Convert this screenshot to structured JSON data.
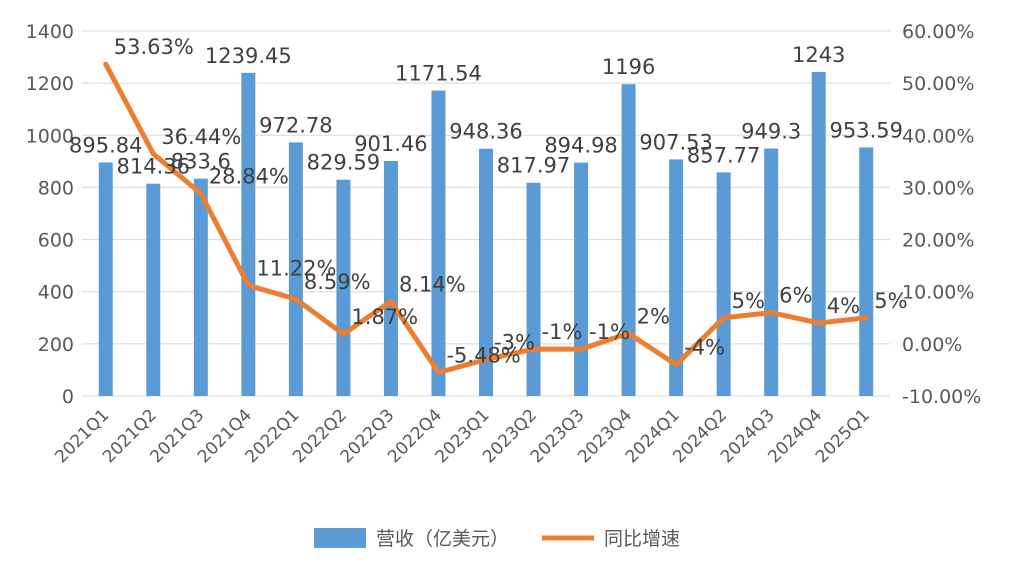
{
  "chart_data": {
    "type": "bar",
    "categories": [
      "2021Q1",
      "2021Q2",
      "2021Q3",
      "2021Q4",
      "2022Q1",
      "2022Q2",
      "2022Q3",
      "2022Q4",
      "2023Q1",
      "2023Q2",
      "2023Q3",
      "2023Q4",
      "2024Q1",
      "2024Q2",
      "2024Q3",
      "2024Q4",
      "2025Q1"
    ],
    "series": [
      {
        "name": "营收（亿美元）",
        "type": "bar",
        "axis": "left",
        "color": "#5B9BD5",
        "values": [
          895.84,
          814.36,
          833.6,
          1239.45,
          972.78,
          829.59,
          901.46,
          1171.54,
          948.36,
          817.97,
          894.98,
          1196,
          907.53,
          857.77,
          949.3,
          1243,
          953.59
        ],
        "labels": [
          "895.84",
          "814.36",
          "833.6",
          "1239.45",
          "972.78",
          "829.59",
          "901.46",
          "1171.54",
          "948.36",
          "817.97",
          "894.98",
          "1196",
          "907.53",
          "857.77",
          "949.3",
          "1243",
          "953.59"
        ]
      },
      {
        "name": "同比增速",
        "type": "line",
        "axis": "right",
        "color": "#ED7D31",
        "values": [
          53.63,
          36.44,
          28.84,
          11.22,
          8.59,
          1.87,
          8.14,
          -5.48,
          -3,
          -1,
          -1,
          2,
          -4,
          5,
          6,
          4,
          5
        ],
        "labels": [
          "53.63%",
          "36.44%",
          "28.84%",
          "11.22%",
          "8.59%",
          "1.87%",
          "8.14%",
          "-5.48%",
          "-3%",
          "-1%",
          "-1%",
          "2%",
          "-4%",
          "5%",
          "6%",
          "4%",
          "5%"
        ]
      }
    ],
    "y_left": {
      "min": 0,
      "max": 1400,
      "ticks": [
        "0",
        "200",
        "400",
        "600",
        "800",
        "1000",
        "1200",
        "1400"
      ]
    },
    "y_right": {
      "min": -10,
      "max": 60,
      "ticks": [
        "-10.00%",
        "0.00%",
        "10.00%",
        "20.00%",
        "30.00%",
        "40.00%",
        "50.00%",
        "60.00%"
      ]
    },
    "grid": true,
    "legend_position": "bottom"
  }
}
